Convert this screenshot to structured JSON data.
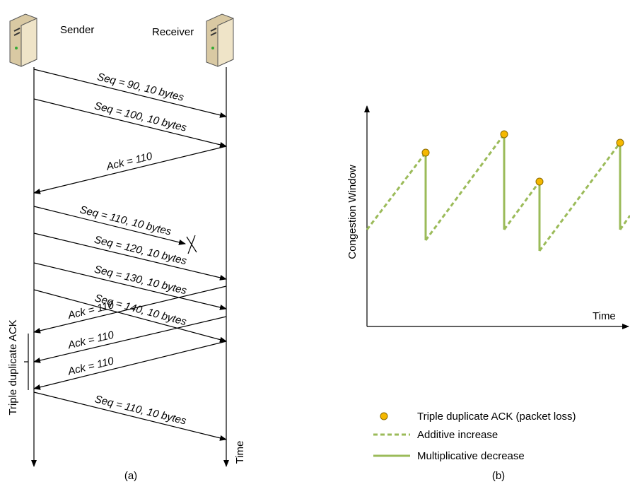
{
  "part_a": {
    "sender": "Sender",
    "receiver": "Receiver",
    "messages": [
      "Seq = 90, 10 bytes",
      "Seq = 100, 10 bytes",
      "Ack = 110",
      "Seq = 110, 10 bytes",
      "Seq = 120, 10 bytes",
      "Seq = 130, 10 bytes",
      "Seq = 140, 10 bytes",
      "Ack = 110",
      "Ack = 110",
      "Ack = 110",
      "Seq = 110, 10 bytes"
    ],
    "side_label": "Triple duplicate ACK",
    "time_label": "Time",
    "caption": "(a)"
  },
  "part_b": {
    "y_axis_label": "Congestion Window",
    "x_axis_label": "Time",
    "legend": [
      "Triple duplicate ACK (packet loss)",
      "Additive increase",
      "Multiplicative decrease"
    ],
    "caption": "(b)"
  }
}
